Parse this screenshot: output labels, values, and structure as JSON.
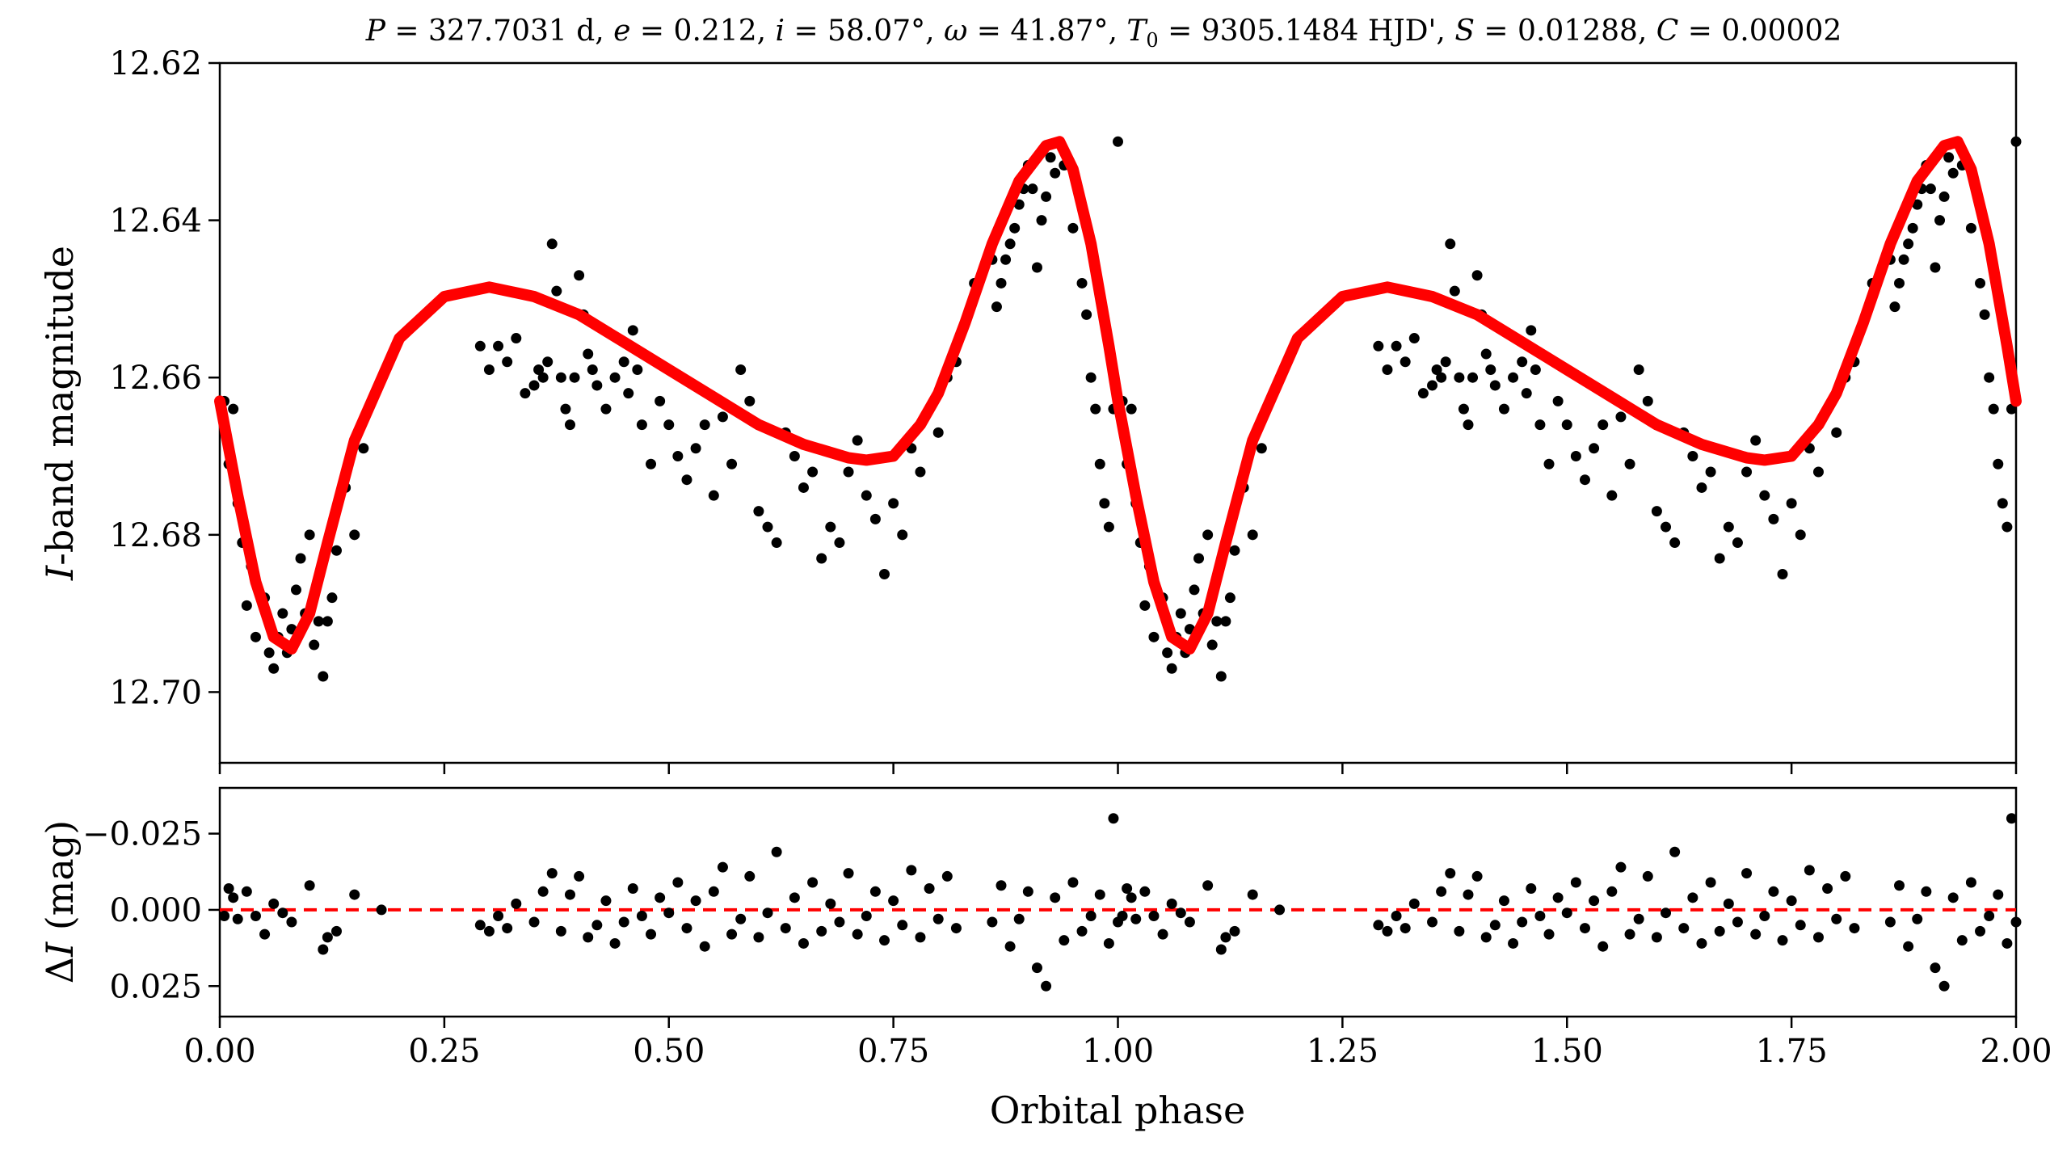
{
  "title": "P = 327.7031 d, e = 0.212, i = 58.07°, ω = 41.87°, T0 = 9305.1484 HJD', S = 0.01288, C = 0.00002",
  "title_parts": {
    "P_sym": "P",
    "P_val": " = 327.7031 d, ",
    "e_sym": "e",
    "e_val": " = 0.212, ",
    "i_sym": "i",
    "i_val": " = 58.07°, ",
    "w_sym": "ω",
    "w_val": " = 41.87°, ",
    "T_sym": "T",
    "T_sub": "0",
    "T_val": " = 9305.1484 HJD', ",
    "S_sym": "S",
    "S_val": " = 0.01288, ",
    "C_sym": "C",
    "C_val": " = 0.00002"
  },
  "colors": {
    "points": "#000000",
    "model": "#ff0000",
    "zero_line": "#ff0000"
  },
  "chart_data": [
    {
      "type": "scatter",
      "panel": "top",
      "ylabel": "I-band magnitude",
      "ylabel_italic": "I",
      "ylabel_rest": "-band magnitude",
      "xlabel": "",
      "xlim": [
        0.0,
        2.0
      ],
      "ylim": [
        12.709,
        12.62
      ],
      "y_inverted": true,
      "yticks": [
        "12.62",
        "12.64",
        "12.66",
        "12.68",
        "12.70"
      ],
      "ytick_values": [
        12.62,
        12.64,
        12.66,
        12.68,
        12.7
      ],
      "grid": false,
      "model": {
        "name": "",
        "color": "#ff0000",
        "x": [
          0.0,
          0.02,
          0.04,
          0.06,
          0.08,
          0.1,
          0.12,
          0.15,
          0.2,
          0.25,
          0.3,
          0.35,
          0.4,
          0.45,
          0.5,
          0.55,
          0.6,
          0.65,
          0.7,
          0.72,
          0.75,
          0.78,
          0.8,
          0.83,
          0.86,
          0.89,
          0.92,
          0.935,
          0.95,
          0.97,
          0.99,
          1.0
        ],
        "y": [
          12.663,
          12.675,
          12.686,
          12.693,
          12.6945,
          12.69,
          12.681,
          12.668,
          12.655,
          12.6497,
          12.6485,
          12.6497,
          12.652,
          12.6555,
          12.659,
          12.6625,
          12.666,
          12.6685,
          12.6702,
          12.6705,
          12.67,
          12.666,
          12.662,
          12.653,
          12.643,
          12.635,
          12.6305,
          12.63,
          12.6335,
          12.643,
          12.656,
          12.663
        ]
      },
      "observations": {
        "x": [
          0.005,
          0.01,
          0.015,
          0.02,
          0.025,
          0.03,
          0.035,
          0.04,
          0.05,
          0.055,
          0.06,
          0.065,
          0.07,
          0.075,
          0.08,
          0.085,
          0.09,
          0.095,
          0.1,
          0.105,
          0.11,
          0.115,
          0.12,
          0.125,
          0.13,
          0.14,
          0.15,
          0.16,
          0.29,
          0.3,
          0.31,
          0.32,
          0.33,
          0.34,
          0.35,
          0.355,
          0.36,
          0.365,
          0.37,
          0.375,
          0.38,
          0.385,
          0.39,
          0.395,
          0.4,
          0.405,
          0.41,
          0.415,
          0.42,
          0.43,
          0.44,
          0.45,
          0.455,
          0.46,
          0.465,
          0.47,
          0.48,
          0.49,
          0.5,
          0.51,
          0.52,
          0.53,
          0.54,
          0.55,
          0.56,
          0.57,
          0.58,
          0.59,
          0.6,
          0.61,
          0.62,
          0.63,
          0.64,
          0.65,
          0.66,
          0.67,
          0.68,
          0.69,
          0.7,
          0.71,
          0.72,
          0.73,
          0.74,
          0.75,
          0.76,
          0.77,
          0.78,
          0.79,
          0.8,
          0.81,
          0.82,
          0.84,
          0.86,
          0.865,
          0.87,
          0.875,
          0.88,
          0.885,
          0.89,
          0.895,
          0.9,
          0.905,
          0.91,
          0.915,
          0.92,
          0.925,
          0.93,
          0.94,
          0.95,
          0.96,
          0.965,
          0.97,
          0.975,
          0.98,
          0.985,
          0.99,
          0.995,
          1.0
        ],
        "y": [
          12.663,
          12.671,
          12.664,
          12.676,
          12.681,
          12.689,
          12.684,
          12.693,
          12.688,
          12.695,
          12.697,
          12.693,
          12.69,
          12.695,
          12.692,
          12.687,
          12.683,
          12.69,
          12.68,
          12.694,
          12.691,
          12.698,
          12.691,
          12.688,
          12.682,
          12.674,
          12.68,
          12.669,
          12.656,
          12.659,
          12.656,
          12.658,
          12.655,
          12.662,
          12.661,
          12.659,
          12.66,
          12.658,
          12.643,
          12.649,
          12.66,
          12.664,
          12.666,
          12.66,
          12.647,
          12.652,
          12.657,
          12.659,
          12.661,
          12.664,
          12.66,
          12.658,
          12.662,
          12.654,
          12.659,
          12.666,
          12.671,
          12.663,
          12.666,
          12.67,
          12.673,
          12.669,
          12.666,
          12.675,
          12.665,
          12.671,
          12.659,
          12.663,
          12.677,
          12.679,
          12.681,
          12.667,
          12.67,
          12.674,
          12.672,
          12.683,
          12.679,
          12.681,
          12.672,
          12.668,
          12.675,
          12.678,
          12.685,
          12.676,
          12.68,
          12.669,
          12.672,
          12.664,
          12.667,
          12.66,
          12.658,
          12.648,
          12.645,
          12.651,
          12.648,
          12.645,
          12.643,
          12.641,
          12.638,
          12.636,
          12.633,
          12.636,
          12.646,
          12.64,
          12.637,
          12.632,
          12.634,
          12.633,
          12.641,
          12.648,
          12.652,
          12.66,
          12.664,
          12.671,
          12.676,
          12.679,
          12.664,
          12.63
        ]
      }
    },
    {
      "type": "scatter",
      "panel": "bottom",
      "ylabel": "ΔI (mag)",
      "ylabel_delta": "Δ",
      "ylabel_italic": "I",
      "ylabel_rest": " (mag)",
      "xlabel": "Orbital phase",
      "xlim": [
        0.0,
        2.0
      ],
      "ylim": [
        0.035,
        -0.04
      ],
      "y_inverted": true,
      "yticks": [
        "−0.025",
        "0.000",
        "0.025"
      ],
      "ytick_values": [
        -0.025,
        0.0,
        0.025
      ],
      "xticks": [
        "0.00",
        "0.25",
        "0.50",
        "0.75",
        "1.00",
        "1.25",
        "1.50",
        "1.75",
        "2.00"
      ],
      "xtick_values": [
        0.0,
        0.25,
        0.5,
        0.75,
        1.0,
        1.25,
        1.5,
        1.75,
        2.0
      ],
      "grid": false,
      "zero_line": 0.0,
      "observations": {
        "x": [
          0.005,
          0.01,
          0.015,
          0.02,
          0.03,
          0.04,
          0.05,
          0.06,
          0.07,
          0.08,
          0.1,
          0.115,
          0.12,
          0.13,
          0.15,
          0.18,
          0.29,
          0.3,
          0.31,
          0.32,
          0.33,
          0.35,
          0.36,
          0.37,
          0.38,
          0.39,
          0.4,
          0.41,
          0.42,
          0.43,
          0.44,
          0.45,
          0.46,
          0.47,
          0.48,
          0.49,
          0.5,
          0.51,
          0.52,
          0.53,
          0.54,
          0.55,
          0.56,
          0.57,
          0.58,
          0.59,
          0.6,
          0.61,
          0.62,
          0.63,
          0.64,
          0.65,
          0.66,
          0.67,
          0.68,
          0.69,
          0.7,
          0.71,
          0.72,
          0.73,
          0.74,
          0.75,
          0.76,
          0.77,
          0.78,
          0.79,
          0.8,
          0.81,
          0.82,
          0.86,
          0.87,
          0.88,
          0.89,
          0.9,
          0.91,
          0.92,
          0.93,
          0.94,
          0.95,
          0.96,
          0.97,
          0.98,
          0.99,
          0.995,
          1.0
        ],
        "y": [
          0.002,
          -0.007,
          -0.004,
          0.003,
          -0.006,
          0.002,
          0.008,
          -0.002,
          0.001,
          0.004,
          -0.008,
          0.013,
          0.009,
          0.007,
          -0.005,
          0.0,
          0.005,
          0.007,
          0.002,
          0.006,
          -0.002,
          0.004,
          -0.006,
          -0.012,
          0.007,
          -0.005,
          -0.011,
          0.009,
          0.005,
          -0.003,
          0.011,
          0.004,
          -0.007,
          0.002,
          0.008,
          -0.004,
          0.001,
          -0.009,
          0.006,
          -0.003,
          0.012,
          -0.006,
          -0.014,
          0.008,
          0.003,
          -0.011,
          0.009,
          0.001,
          -0.019,
          0.006,
          -0.004,
          0.011,
          -0.009,
          0.007,
          -0.002,
          0.004,
          -0.012,
          0.008,
          0.002,
          -0.006,
          0.01,
          -0.003,
          0.005,
          -0.013,
          0.009,
          -0.007,
          0.003,
          -0.011,
          0.006,
          0.004,
          -0.008,
          0.012,
          0.003,
          -0.006,
          0.019,
          0.025,
          -0.004,
          0.01,
          -0.009,
          0.007,
          0.002,
          -0.005,
          0.011,
          -0.03,
          0.004
        ]
      }
    }
  ]
}
